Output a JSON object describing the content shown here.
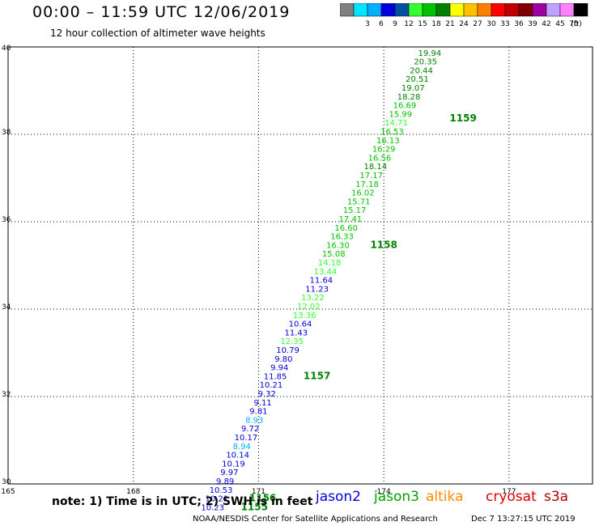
{
  "header": {
    "title": "00:00 – 11:59 UTC 12/06/2019",
    "subtitle": "12 hour collection of altimeter wave heights"
  },
  "legend": {
    "unit": "(ft)",
    "bins": [
      {
        "label": "",
        "color": "#808080"
      },
      {
        "label": "3",
        "color": "#00e5ff"
      },
      {
        "label": "6",
        "color": "#00b0ff"
      },
      {
        "label": "9",
        "color": "#0000dd"
      },
      {
        "label": "12",
        "color": "#0050a0"
      },
      {
        "label": "15",
        "color": "#33ff33"
      },
      {
        "label": "18",
        "color": "#00c000"
      },
      {
        "label": "21",
        "color": "#008000"
      },
      {
        "label": "24",
        "color": "#ffff00"
      },
      {
        "label": "27",
        "color": "#ffc000"
      },
      {
        "label": "30",
        "color": "#ff8000"
      },
      {
        "label": "33",
        "color": "#ff0000"
      },
      {
        "label": "36",
        "color": "#c00000"
      },
      {
        "label": "39",
        "color": "#800000"
      },
      {
        "label": "42",
        "color": "#a000a0"
      },
      {
        "label": "45",
        "color": "#c0a0ff"
      },
      {
        "label": "70",
        "color": "#ff80ff"
      },
      {
        "label": "",
        "color": "#000000"
      }
    ]
  },
  "chart_data": {
    "type": "scatter",
    "x_ticks": [
      "165",
      "168",
      "171",
      "174",
      "177"
    ],
    "y_ticks": [
      "30",
      "32",
      "34",
      "36",
      "38",
      "40"
    ],
    "xlim": [
      165,
      179
    ],
    "ylim": [
      30,
      40
    ],
    "points": [
      {
        "lon": 175.1,
        "lat": 39.8,
        "v": "19.94",
        "c": "#008000"
      },
      {
        "lon": 175.0,
        "lat": 39.6,
        "v": "20.35",
        "c": "#008000"
      },
      {
        "lon": 174.9,
        "lat": 39.4,
        "v": "20.44",
        "c": "#008000"
      },
      {
        "lon": 174.8,
        "lat": 39.2,
        "v": "20.51",
        "c": "#008000"
      },
      {
        "lon": 174.7,
        "lat": 39.0,
        "v": "19.07",
        "c": "#008000"
      },
      {
        "lon": 174.6,
        "lat": 38.8,
        "v": "18.28",
        "c": "#008000"
      },
      {
        "lon": 174.5,
        "lat": 38.6,
        "v": "16.69",
        "c": "#00c000"
      },
      {
        "lon": 174.4,
        "lat": 38.4,
        "v": "15.99",
        "c": "#00c000"
      },
      {
        "lon": 174.3,
        "lat": 38.2,
        "v": "14.71",
        "c": "#33ff33"
      },
      {
        "lon": 174.2,
        "lat": 38.0,
        "v": "16.53",
        "c": "#00c000"
      },
      {
        "lon": 174.1,
        "lat": 37.8,
        "v": "16.13",
        "c": "#00c000"
      },
      {
        "lon": 174.0,
        "lat": 37.6,
        "v": "16.29",
        "c": "#00c000"
      },
      {
        "lon": 173.9,
        "lat": 37.4,
        "v": "16.56",
        "c": "#00c000"
      },
      {
        "lon": 173.8,
        "lat": 37.2,
        "v": "18.14",
        "c": "#008000"
      },
      {
        "lon": 173.7,
        "lat": 37.0,
        "v": "17.17",
        "c": "#00c000"
      },
      {
        "lon": 173.6,
        "lat": 36.8,
        "v": "17.18",
        "c": "#00c000"
      },
      {
        "lon": 173.5,
        "lat": 36.6,
        "v": "16.02",
        "c": "#00c000"
      },
      {
        "lon": 173.4,
        "lat": 36.4,
        "v": "15.71",
        "c": "#00c000"
      },
      {
        "lon": 173.3,
        "lat": 36.2,
        "v": "15.17",
        "c": "#00c000"
      },
      {
        "lon": 173.2,
        "lat": 36.0,
        "v": "17.41",
        "c": "#00c000"
      },
      {
        "lon": 173.1,
        "lat": 35.8,
        "v": "16.60",
        "c": "#00c000"
      },
      {
        "lon": 173.0,
        "lat": 35.6,
        "v": "16.33",
        "c": "#00c000"
      },
      {
        "lon": 172.9,
        "lat": 35.4,
        "v": "16.30",
        "c": "#00c000"
      },
      {
        "lon": 172.8,
        "lat": 35.2,
        "v": "15.08",
        "c": "#00c000"
      },
      {
        "lon": 172.7,
        "lat": 35.0,
        "v": "14.18",
        "c": "#33ff33"
      },
      {
        "lon": 172.6,
        "lat": 34.8,
        "v": "13.44",
        "c": "#33ff33"
      },
      {
        "lon": 172.5,
        "lat": 34.6,
        "v": "11.64",
        "c": "#0000dd"
      },
      {
        "lon": 172.4,
        "lat": 34.4,
        "v": "11.23",
        "c": "#0000dd"
      },
      {
        "lon": 172.3,
        "lat": 34.2,
        "v": "13.22",
        "c": "#33ff33"
      },
      {
        "lon": 172.2,
        "lat": 34.0,
        "v": "12.02",
        "c": "#33ff33"
      },
      {
        "lon": 172.1,
        "lat": 33.8,
        "v": "13.36",
        "c": "#33ff33"
      },
      {
        "lon": 172.0,
        "lat": 33.6,
        "v": "10.64",
        "c": "#0000dd"
      },
      {
        "lon": 171.9,
        "lat": 33.4,
        "v": "11.43",
        "c": "#0000dd"
      },
      {
        "lon": 171.8,
        "lat": 33.2,
        "v": "12.35",
        "c": "#33ff33"
      },
      {
        "lon": 171.7,
        "lat": 33.0,
        "v": "10.79",
        "c": "#0000dd"
      },
      {
        "lon": 171.6,
        "lat": 32.8,
        "v": "9.80",
        "c": "#0000dd"
      },
      {
        "lon": 171.5,
        "lat": 32.6,
        "v": "9.94",
        "c": "#0000dd"
      },
      {
        "lon": 171.4,
        "lat": 32.4,
        "v": "11.85",
        "c": "#0000dd"
      },
      {
        "lon": 171.3,
        "lat": 32.2,
        "v": "10.21",
        "c": "#0000dd"
      },
      {
        "lon": 171.2,
        "lat": 32.0,
        "v": "9.32",
        "c": "#0000dd"
      },
      {
        "lon": 171.1,
        "lat": 31.8,
        "v": "9.11",
        "c": "#0000dd"
      },
      {
        "lon": 171.0,
        "lat": 31.6,
        "v": "9.81",
        "c": "#0000dd"
      },
      {
        "lon": 170.9,
        "lat": 31.4,
        "v": "8.93",
        "c": "#00b0ff"
      },
      {
        "lon": 170.8,
        "lat": 31.2,
        "v": "9.72",
        "c": "#0000dd"
      },
      {
        "lon": 170.7,
        "lat": 31.0,
        "v": "10.17",
        "c": "#0000dd"
      },
      {
        "lon": 170.6,
        "lat": 30.8,
        "v": "8.94",
        "c": "#00b0ff"
      },
      {
        "lon": 170.5,
        "lat": 30.6,
        "v": "10.14",
        "c": "#0000dd"
      },
      {
        "lon": 170.4,
        "lat": 30.4,
        "v": "10.19",
        "c": "#0000dd"
      },
      {
        "lon": 170.3,
        "lat": 30.2,
        "v": "9.97",
        "c": "#0000dd"
      },
      {
        "lon": 170.2,
        "lat": 30.0,
        "v": "9.89",
        "c": "#0000dd"
      },
      {
        "lon": 170.1,
        "lat": 29.8,
        "v": "10.53",
        "c": "#0000dd"
      },
      {
        "lon": 170.0,
        "lat": 29.6,
        "v": "10.21",
        "c": "#0000dd"
      },
      {
        "lon": 169.9,
        "lat": 29.4,
        "v": "10.23",
        "c": "#0000dd"
      }
    ],
    "time_labels": [
      {
        "lon": 175.9,
        "lat": 38.3,
        "t": "1159",
        "c": "#008000"
      },
      {
        "lon": 174.0,
        "lat": 35.4,
        "t": "1158",
        "c": "#008000"
      },
      {
        "lon": 172.4,
        "lat": 32.4,
        "t": "1157",
        "c": "#008000"
      },
      {
        "lon": 171.1,
        "lat": 29.6,
        "t": "1156",
        "c": "#008000"
      },
      {
        "lon": 170.9,
        "lat": 29.4,
        "t": "1155",
        "c": "#008000"
      }
    ]
  },
  "note": "note: 1) Time is in UTC; 2) SWH is in feet",
  "satellites": [
    {
      "name": "jason2",
      "color": "#0000dd"
    },
    {
      "name": "jason3",
      "color": "#00a000"
    },
    {
      "name": "altika",
      "color": "#ff8c00"
    },
    {
      "name": "cryosat",
      "color": "#dd0000"
    },
    {
      "name": "s3a",
      "color": "#aa0000"
    }
  ],
  "footer": {
    "credit": "NOAA/NESDIS Center for Satellite Applications and Research",
    "timestamp": "Dec  7 13:27:15 UTC 2019"
  }
}
